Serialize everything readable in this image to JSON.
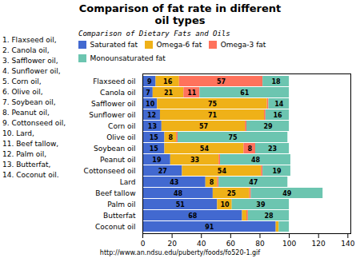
{
  "chart_data": {
    "type": "bar",
    "orientation": "horizontal",
    "stacked": true,
    "title": "Comparison of fat rate in different\noil types",
    "subtitle": "Comparison of Dietary Fats and Oils",
    "caption": "http://www.an.ndsu.edu/puberty/foods/fo520-1.gif",
    "annotations": [
      "1. Flaxseed oil,",
      "2. Canola oil,",
      "3. Safflower oil,",
      "4. Sunflower oil,",
      "5. Corn oil,",
      "6. Olive oil,",
      "7. Soybean oil,",
      "8. Peanut oil,",
      "9. Cottonseed oil,",
      "10. Lard,",
      "11. Beef tallow,",
      "12. Palm oil,",
      "13. Butterfat,",
      "14. Coconut oil."
    ],
    "categories": [
      "Flaxseed oil",
      "Canola oil",
      "Safflower oil",
      "Sunflower oil",
      "Corn oil",
      "Olive oil",
      "Soybean oil",
      "Peanut oil",
      "Cottonseed oil",
      "Lard",
      "Beef tallow",
      "Palm oil",
      "Butterfat",
      "Coconut oil"
    ],
    "series": [
      {
        "name": "Saturated fat",
        "values": [
          9,
          7,
          10,
          12,
          13,
          15,
          15,
          19,
          27,
          43,
          48,
          51,
          68,
          91
        ],
        "value_labels": [
          "9",
          "7",
          "10",
          "12",
          "13",
          "15",
          "15",
          "19",
          "27",
          "43",
          "48",
          "51",
          "68",
          "91"
        ]
      },
      {
        "name": "Omega-6 fat",
        "values": [
          16,
          21,
          75,
          71,
          57,
          8,
          54,
          33,
          54,
          8,
          25,
          10,
          3,
          2
        ],
        "value_labels": [
          "16",
          "21",
          "75",
          "71",
          "57",
          "8",
          "54",
          "33",
          "54",
          "8",
          "25",
          "10",
          null,
          null
        ]
      },
      {
        "name": "Omega-3 fat",
        "values": [
          57,
          11,
          1,
          1,
          1,
          1,
          8,
          1,
          1,
          1,
          1,
          0,
          1,
          0
        ],
        "value_labels": [
          "57",
          "11",
          null,
          null,
          null,
          null,
          "8",
          null,
          null,
          null,
          null,
          null,
          null,
          null
        ]
      },
      {
        "name": "Monounsaturated fat",
        "values": [
          18,
          61,
          14,
          16,
          29,
          75,
          23,
          48,
          19,
          47,
          49,
          39,
          28,
          7
        ],
        "value_labels": [
          "18",
          "61",
          "14",
          "16",
          "29",
          "75",
          "23",
          "48",
          "19",
          "47",
          "49",
          "39",
          "28",
          null
        ]
      }
    ],
    "xlim": [
      0,
      142
    ],
    "xticks": [
      0,
      20,
      40,
      60,
      80,
      100,
      120,
      140
    ],
    "grid": false,
    "legend": "top",
    "data_labels": true
  }
}
